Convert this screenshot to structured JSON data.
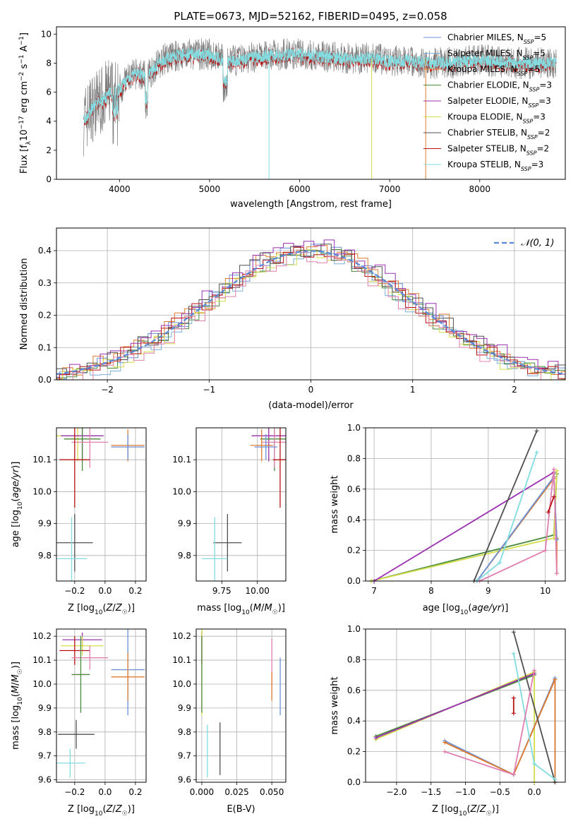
{
  "figure_title": "PLATE=0673, MJD=52162, FIBERID=0495, z=0.058",
  "colors": {
    "chabrier_miles": "#6b8fd6",
    "salpeter_miles": "#7cb0d9",
    "kroupa_miles": "#e07b2e",
    "chabrier_elodie": "#4a8a3c",
    "salpeter_elodie": "#9b30b0",
    "kroupa_elodie": "#d4dd4a",
    "chabrier_stelib": "#505050",
    "salpeter_stelib": "#b81414",
    "kroupa_stelib": "#82dce0",
    "pink": "#e07fb0",
    "normal_curve": "#5b88d6",
    "grid": "#b0b0b0"
  },
  "chart_data": [
    {
      "id": "spectrum",
      "type": "line",
      "xlabel": "wavelength [Angstrom, rest frame]",
      "ylabel_parts": [
        "Flux [f",
        "λ",
        "10",
        "−17",
        " erg cm",
        "−2",
        " s",
        "−1",
        " A",
        "−1",
        "]"
      ],
      "xlim": [
        3300,
        8950
      ],
      "ylim": [
        0,
        10.5
      ],
      "xticks": [
        4000,
        5000,
        6000,
        7000,
        8000
      ],
      "yticks": [
        0,
        2,
        4,
        6,
        8,
        10
      ],
      "grid": false,
      "legend_position": "right",
      "legend": [
        {
          "label": "Chabrier MILES, N",
          "sub": "SSP",
          "suffix": "=5",
          "color": "chabrier_miles"
        },
        {
          "label": "Salpeter MILES, N",
          "sub": "SSP",
          "suffix": "=5",
          "color": "salpeter_miles"
        },
        {
          "label": "Kroupa MILES, N",
          "sub": "SSP",
          "suffix": "=5",
          "color": "kroupa_miles"
        },
        {
          "label": "Chabrier ELODIE, N",
          "sub": "SSP",
          "suffix": "=3",
          "color": "chabrier_elodie"
        },
        {
          "label": "Salpeter ELODIE, N",
          "sub": "SSP",
          "suffix": "=3",
          "color": "salpeter_elodie"
        },
        {
          "label": "Kroupa ELODIE, N",
          "sub": "SSP",
          "suffix": "=3",
          "color": "kroupa_elodie"
        },
        {
          "label": "Chabrier STELIB, N",
          "sub": "SSP",
          "suffix": "=2",
          "color": "chabrier_stelib"
        },
        {
          "label": "Salpeter STELIB, N",
          "sub": "SSP",
          "suffix": "=2",
          "color": "salpeter_stelib"
        },
        {
          "label": "Kroupa STELIB, N",
          "sub": "SSP",
          "suffix": "=3",
          "color": "kroupa_stelib"
        }
      ],
      "data_range": [
        3600,
        8850
      ],
      "series": [
        {
          "name": "data",
          "color": "#808080",
          "x": [
            3600,
            3700,
            3800,
            3900,
            4000,
            4100,
            4200,
            4300,
            4400,
            4500,
            4700,
            5000,
            5200,
            5400,
            5600,
            5800,
            6000,
            6200,
            6400,
            6600,
            6800,
            7000,
            7200,
            7400,
            7600,
            8000,
            8400,
            8850
          ],
          "y": [
            4.0,
            5.0,
            5.5,
            6.0,
            6.2,
            7.0,
            7.3,
            7.0,
            7.8,
            8.3,
            8.6,
            8.6,
            8.1,
            8.3,
            8.5,
            8.6,
            8.6,
            8.5,
            8.4,
            8.3,
            8.4,
            8.1,
            8.2,
            8.0,
            8.0,
            8.2,
            8.0,
            8.0
          ]
        },
        {
          "name": "model",
          "color": "#82dce0",
          "x": [
            3600,
            3700,
            3800,
            3900,
            4000,
            4100,
            4200,
            4300,
            4400,
            4500,
            4700,
            5000,
            5200,
            5400,
            5600,
            5800,
            6000,
            6200,
            6400,
            6600,
            6800,
            7000,
            7200,
            7400,
            7600,
            8000,
            8400,
            8850
          ],
          "y": [
            4.0,
            4.9,
            5.4,
            6.0,
            6.2,
            7.0,
            7.3,
            7.0,
            7.8,
            8.3,
            8.6,
            8.6,
            8.1,
            8.3,
            8.5,
            8.6,
            8.6,
            8.5,
            8.4,
            8.3,
            8.4,
            8.1,
            8.2,
            8.0,
            8.0,
            8.2,
            8.0,
            8.0
          ]
        }
      ]
    },
    {
      "id": "residuals",
      "type": "histogram",
      "xlabel": "(data-model)/error",
      "ylabel": "Normed distribution",
      "xlim": [
        -2.5,
        2.5
      ],
      "ylim": [
        0,
        0.47
      ],
      "xticks": [
        -2,
        -1,
        0,
        1,
        2
      ],
      "yticks": [
        0.0,
        0.1,
        0.2,
        0.3,
        0.4
      ],
      "grid": true,
      "legend_position": "top-right",
      "legend_label": "𝒩(0, 1)",
      "bin_width": 0.1,
      "series": [
        {
          "color": "chabrier_miles",
          "offset": 0.004
        },
        {
          "color": "salpeter_miles",
          "offset": -0.012
        },
        {
          "color": "kroupa_miles",
          "offset": 0.01
        },
        {
          "color": "chabrier_elodie",
          "offset": -0.006
        },
        {
          "color": "salpeter_elodie",
          "offset": 0.016
        },
        {
          "color": "kroupa_elodie",
          "offset": -0.016
        },
        {
          "color": "chabrier_stelib",
          "offset": 0.008
        },
        {
          "color": "salpeter_stelib",
          "offset": 0.0
        },
        {
          "color": "pink",
          "offset": -0.02
        }
      ]
    },
    {
      "id": "age_vs_z",
      "type": "errorbar",
      "xlabel": "Z [log10(Z/Z☉)]",
      "ylabel": "age  [log10(age/yr)]",
      "xlim": [
        -0.32,
        0.27
      ],
      "ylim": [
        9.72,
        10.2
      ],
      "xticks": [
        -0.2,
        0.0,
        0.2
      ],
      "yticks": [
        9.8,
        9.9,
        10.0,
        10.1
      ],
      "grid": true,
      "points": [
        {
          "x": -0.18,
          "y": 10.175,
          "xerr": 0.14,
          "yerr": 0.08,
          "color": "kroupa_elodie"
        },
        {
          "x": -0.15,
          "y": 10.175,
          "xerr": 0.14,
          "yerr": 0.08,
          "color": "salpeter_elodie"
        },
        {
          "x": -0.15,
          "y": 10.165,
          "xerr": 0.12,
          "yerr": 0.1,
          "color": "chabrier_elodie"
        },
        {
          "x": -0.1,
          "y": 10.155,
          "xerr": 0.12,
          "yerr": 0.08,
          "color": "pink"
        },
        {
          "x": 0.15,
          "y": 10.145,
          "xerr": 0.11,
          "yerr": 0.05,
          "color": "kroupa_miles"
        },
        {
          "x": 0.15,
          "y": 10.14,
          "xerr": 0.11,
          "yerr": 0.04,
          "color": "chabrier_miles"
        },
        {
          "x": -0.2,
          "y": 10.1,
          "xerr": 0.1,
          "yerr": 0.15,
          "color": "salpeter_stelib"
        },
        {
          "x": -0.2,
          "y": 9.84,
          "xerr": 0.12,
          "yerr": 0.09,
          "color": "chabrier_stelib"
        },
        {
          "x": -0.22,
          "y": 9.79,
          "xerr": 0.1,
          "yerr": 0.13,
          "color": "kroupa_stelib"
        }
      ]
    },
    {
      "id": "age_vs_mass",
      "type": "errorbar",
      "xlabel": "mass [log10(M/M☉)]",
      "xlim": [
        9.57,
        10.2
      ],
      "ylim": [
        9.72,
        10.2
      ],
      "xticks": [
        9.75,
        10.0
      ],
      "yticks": [
        9.8,
        9.9,
        10.0,
        10.1
      ],
      "grid": true,
      "points": [
        {
          "x": 10.08,
          "y": 10.175,
          "xerr": 0.12,
          "yerr": 0.08,
          "color": "kroupa_elodie"
        },
        {
          "x": 10.08,
          "y": 10.175,
          "xerr": 0.12,
          "yerr": 0.08,
          "color": "salpeter_elodie"
        },
        {
          "x": 10.12,
          "y": 10.165,
          "xerr": 0.1,
          "yerr": 0.1,
          "color": "chabrier_elodie"
        },
        {
          "x": 10.12,
          "y": 10.155,
          "xerr": 0.09,
          "yerr": 0.08,
          "color": "pink"
        },
        {
          "x": 10.03,
          "y": 10.145,
          "xerr": 0.08,
          "yerr": 0.05,
          "color": "kroupa_miles"
        },
        {
          "x": 10.06,
          "y": 10.14,
          "xerr": 0.08,
          "yerr": 0.04,
          "color": "chabrier_miles"
        },
        {
          "x": 10.16,
          "y": 10.1,
          "xerr": 0.05,
          "yerr": 0.15,
          "color": "salpeter_stelib"
        },
        {
          "x": 9.79,
          "y": 9.84,
          "xerr": 0.1,
          "yerr": 0.09,
          "color": "chabrier_stelib"
        },
        {
          "x": 9.7,
          "y": 9.79,
          "xerr": 0.09,
          "yerr": 0.13,
          "color": "kroupa_stelib"
        }
      ]
    },
    {
      "id": "weight_vs_age",
      "type": "line",
      "xlabel": "age  [log10(age/yr)]",
      "ylabel": "mass weight",
      "xlim": [
        6.85,
        10.35
      ],
      "ylim": [
        0,
        1.0
      ],
      "xticks": [
        7,
        8,
        9,
        10
      ],
      "yticks": [
        0.0,
        0.2,
        0.4,
        0.6,
        0.8,
        1.0
      ],
      "grid": true,
      "series": [
        {
          "color": "chabrier_elodie",
          "x": [
            6.95,
            10.15,
            10.2
          ],
          "y": [
            0.0,
            0.3,
            0.7
          ]
        },
        {
          "color": "kroupa_elodie",
          "x": [
            6.95,
            10.15,
            10.2
          ],
          "y": [
            0.0,
            0.28,
            0.72
          ]
        },
        {
          "color": "salpeter_elodie",
          "x": [
            7.0,
            10.15
          ],
          "y": [
            0.0,
            0.71
          ]
        },
        {
          "color": "kroupa_miles",
          "x": [
            8.8,
            10.15,
            10.2,
            10.2
          ],
          "y": [
            0.0,
            0.67,
            0.28,
            0.05
          ]
        },
        {
          "color": "chabrier_miles",
          "x": [
            8.8,
            10.15,
            10.2
          ],
          "y": [
            0.0,
            0.68,
            0.27
          ]
        },
        {
          "color": "chabrier_stelib",
          "x": [
            8.75,
            9.85
          ],
          "y": [
            0.0,
            0.98
          ]
        },
        {
          "color": "kroupa_stelib",
          "x": [
            8.8,
            9.2,
            9.85
          ],
          "y": [
            0.0,
            0.12,
            0.84
          ]
        },
        {
          "color": "pink",
          "x": [
            8.85,
            10.0,
            10.15,
            10.2
          ],
          "y": [
            0.0,
            0.2,
            0.73,
            0.05
          ]
        },
        {
          "color": "salpeter_stelib",
          "x": [
            10.05,
            10.15
          ],
          "y": [
            0.45,
            0.55
          ]
        }
      ]
    },
    {
      "id": "mass_vs_z",
      "type": "errorbar",
      "xlabel": "Z [log10(Z/Z☉)]",
      "ylabel": "mass [log10(M/M☉)]",
      "xlim": [
        -0.32,
        0.27
      ],
      "ylim": [
        9.59,
        10.23
      ],
      "xticks": [
        -0.2,
        0.0,
        0.2
      ],
      "yticks": [
        9.6,
        9.7,
        9.8,
        9.9,
        10.0,
        10.1,
        10.2
      ],
      "grid": true,
      "points": [
        {
          "x": -0.15,
          "y": 10.185,
          "xerr": 0.13,
          "yerr": 0.03,
          "color": "salpeter_elodie"
        },
        {
          "x": -0.15,
          "y": 10.16,
          "xerr": 0.14,
          "yerr": 0.04,
          "color": "kroupa_elodie"
        },
        {
          "x": -0.2,
          "y": 10.14,
          "xerr": 0.1,
          "yerr": 0.06,
          "color": "salpeter_stelib"
        },
        {
          "x": -0.1,
          "y": 10.11,
          "xerr": 0.12,
          "yerr": 0.05,
          "color": "pink"
        },
        {
          "x": 0.15,
          "y": 10.06,
          "xerr": 0.11,
          "yerr": 0.19,
          "color": "chabrier_miles"
        },
        {
          "x": 0.15,
          "y": 10.03,
          "xerr": 0.11,
          "yerr": 0.1,
          "color": "kroupa_miles"
        },
        {
          "x": -0.16,
          "y": 10.04,
          "xerr": 0.06,
          "yerr": 0.16,
          "color": "chabrier_elodie"
        },
        {
          "x": -0.19,
          "y": 9.79,
          "xerr": 0.12,
          "yerr": 0.06,
          "color": "chabrier_stelib"
        },
        {
          "x": -0.23,
          "y": 9.67,
          "xerr": 0.1,
          "yerr": 0.06,
          "color": "kroupa_stelib"
        }
      ]
    },
    {
      "id": "mass_vs_ebv",
      "type": "errorbar",
      "xlabel": "E(B-V)",
      "xlim": [
        -0.004,
        0.06
      ],
      "ylim": [
        9.59,
        10.23
      ],
      "xticks": [
        0.0,
        0.025,
        0.05
      ],
      "yticks": [
        9.6,
        9.7,
        9.8,
        9.9,
        10.0,
        10.1,
        10.2
      ],
      "grid": true,
      "points": [
        {
          "x": 0.0,
          "y": 10.15,
          "xerr": 0,
          "yerr": 0.07,
          "color": "salpeter_stelib"
        },
        {
          "x": 0.0,
          "y": 10.05,
          "xerr": 0,
          "yerr": 0.18,
          "color": "kroupa_elodie"
        },
        {
          "x": 0.0,
          "y": 10.04,
          "xerr": 0,
          "yerr": 0.16,
          "color": "chabrier_elodie"
        },
        {
          "x": 0.05,
          "y": 10.09,
          "xerr": 0,
          "yerr": 0.1,
          "color": "pink"
        },
        {
          "x": 0.05,
          "y": 9.99,
          "xerr": 0,
          "yerr": 0.06,
          "color": "kroupa_miles"
        },
        {
          "x": 0.056,
          "y": 9.99,
          "xerr": 0,
          "yerr": 0.12,
          "color": "chabrier_miles"
        },
        {
          "x": 0.013,
          "y": 9.73,
          "xerr": 0,
          "yerr": 0.11,
          "color": "chabrier_stelib"
        },
        {
          "x": 0.004,
          "y": 9.72,
          "xerr": 0,
          "yerr": 0.11,
          "color": "kroupa_stelib"
        }
      ]
    },
    {
      "id": "weight_vs_z",
      "type": "line",
      "xlabel": "Z [log10(Z/Z☉)]",
      "ylabel": "mass weight",
      "xlim": [
        -2.45,
        0.45
      ],
      "ylim": [
        0,
        1.0
      ],
      "xticks": [
        -2.0,
        -1.5,
        -1.0,
        -0.5,
        0.0
      ],
      "yticks": [
        0.0,
        0.2,
        0.4,
        0.6,
        0.8,
        1.0
      ],
      "grid": true,
      "series": [
        {
          "color": "chabrier_elodie",
          "x": [
            -2.3,
            0.0
          ],
          "y": [
            0.3,
            0.7
          ]
        },
        {
          "color": "kroupa_elodie",
          "x": [
            -2.3,
            0.0,
            0.0
          ],
          "y": [
            0.28,
            0.72,
            0.0
          ]
        },
        {
          "color": "salpeter_elodie",
          "x": [
            -2.3,
            0.0
          ],
          "y": [
            0.29,
            0.71
          ]
        },
        {
          "color": "chabrier_miles",
          "x": [
            -1.3,
            -0.3,
            0.3,
            0.3
          ],
          "y": [
            0.27,
            0.05,
            0.68,
            0.0
          ]
        },
        {
          "color": "kroupa_miles",
          "x": [
            -1.3,
            -0.3,
            0.3,
            0.3
          ],
          "y": [
            0.26,
            0.05,
            0.67,
            0.0
          ]
        },
        {
          "color": "chabrier_stelib",
          "x": [
            -0.3,
            0.3
          ],
          "y": [
            0.98,
            0.0
          ]
        },
        {
          "color": "kroupa_stelib",
          "x": [
            -0.3,
            0.0,
            0.3
          ],
          "y": [
            0.84,
            0.12,
            0.02
          ]
        },
        {
          "color": "pink",
          "x": [
            -1.3,
            -0.3,
            0.0
          ],
          "y": [
            0.2,
            0.05,
            0.73
          ]
        },
        {
          "color": "salpeter_stelib",
          "x": [
            -0.3,
            -0.3
          ],
          "y": [
            0.45,
            0.55
          ]
        }
      ]
    }
  ]
}
